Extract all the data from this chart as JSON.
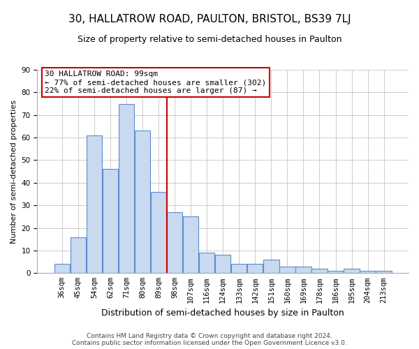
{
  "title": "30, HALLATROW ROAD, PAULTON, BRISTOL, BS39 7LJ",
  "subtitle": "Size of property relative to semi-detached houses in Paulton",
  "xlabel": "Distribution of semi-detached houses by size in Paulton",
  "ylabel": "Number of semi-detached properties",
  "bins": [
    "36sqm",
    "45sqm",
    "54sqm",
    "62sqm",
    "71sqm",
    "80sqm",
    "89sqm",
    "98sqm",
    "107sqm",
    "116sqm",
    "124sqm",
    "133sqm",
    "142sqm",
    "151sqm",
    "160sqm",
    "169sqm",
    "178sqm",
    "186sqm",
    "195sqm",
    "204sqm",
    "213sqm"
  ],
  "values": [
    4,
    16,
    61,
    46,
    75,
    63,
    36,
    27,
    25,
    9,
    8,
    4,
    4,
    6,
    3,
    3,
    2,
    1,
    2,
    1,
    1
  ],
  "bar_color": "#c9d9f0",
  "bar_edge_color": "#5b8bd0",
  "property_line_bin_index": 7,
  "annotation_title": "30 HALLATROW ROAD: 99sqm",
  "annotation_line1": "← 77% of semi-detached houses are smaller (302)",
  "annotation_line2": "22% of semi-detached houses are larger (87) →",
  "annotation_box_color": "#ffffff",
  "annotation_box_edge": "#cc0000",
  "vline_color": "#cc0000",
  "ylim": [
    0,
    90
  ],
  "yticks": [
    0,
    10,
    20,
    30,
    40,
    50,
    60,
    70,
    80,
    90
  ],
  "footer1": "Contains HM Land Registry data © Crown copyright and database right 2024.",
  "footer2": "Contains public sector information licensed under the Open Government Licence v3.0.",
  "background_color": "#ffffff",
  "grid_color": "#cccccc",
  "title_fontsize": 11,
  "subtitle_fontsize": 9,
  "xlabel_fontsize": 9,
  "ylabel_fontsize": 8,
  "tick_fontsize": 7.5,
  "annotation_fontsize": 8,
  "footer_fontsize": 6.5
}
